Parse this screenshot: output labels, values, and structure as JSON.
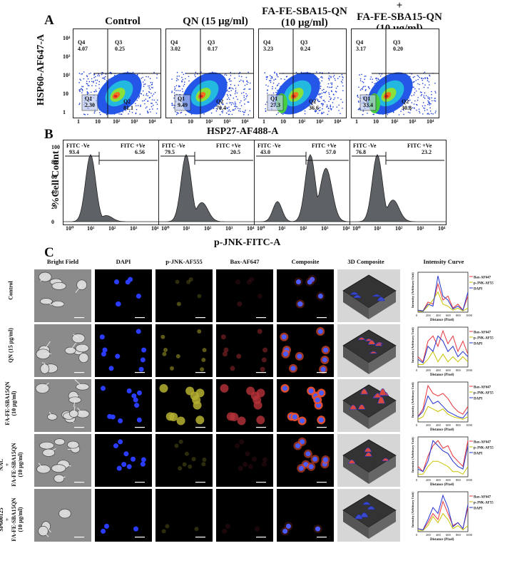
{
  "panelA": {
    "letter": "A",
    "titles": [
      "Control",
      "QN (15 μg/ml)",
      "FA-FE-SBA15-QN\n(10 μg/ml)",
      "+\nFA-FE-SBA15-QN\n(10 μg/ml)"
    ],
    "ylabel": "HSP60-AF647-A",
    "xlabel": "HSP27-AF488-A",
    "ticks": [
      "1",
      "10",
      "10²",
      "10³",
      "10⁴"
    ],
    "plots": [
      {
        "Q1": "2.30",
        "Q2": "81.1",
        "Q3": "0.25",
        "Q4": "4.07"
      },
      {
        "Q1": "9.49",
        "Q2": "70.4",
        "Q3": "0.17",
        "Q4": "3.02"
      },
      {
        "Q1": "27.3",
        "Q2": "36.6",
        "Q3": "0.24",
        "Q4": "3.23"
      },
      {
        "Q1": "33.4",
        "Q2": "30.8",
        "Q3": "0.20",
        "Q4": "3.17"
      }
    ]
  },
  "panelB": {
    "letter": "B",
    "ylabel": "%Cell Count",
    "xlabel": "p-JNK-FITC-A",
    "yticks": [
      "0",
      "20",
      "40",
      "60",
      "80",
      "100"
    ],
    "xticks": [
      "10¹",
      "10⁰",
      "10¹",
      "10²",
      "10³",
      "10⁴"
    ],
    "neg_label": "FITC -Ve",
    "pos_label": "FITC +Ve",
    "plots": [
      {
        "neg": "93.4",
        "pos": "6.56"
      },
      {
        "neg": "79.5",
        "pos": "20.5"
      },
      {
        "neg": "43.0",
        "pos": "57.0"
      },
      {
        "neg": "76.8",
        "pos": "23.2"
      }
    ]
  },
  "panelC": {
    "letter": "C",
    "headers": [
      "Bright Field",
      "DAPI",
      "p-JNK-AF555",
      "Bax-AF647",
      "Composite",
      "3D Composite",
      "Intensity Curve"
    ],
    "rows": [
      {
        "label": "Control"
      },
      {
        "label": "QN (15 μg/ml)"
      },
      {
        "label": "FA-FE-SBA15QN\n(10 μg/ml)"
      },
      {
        "label": "NAC\n+\nFA-FE-SBA15QN\n(10 μg/ml)"
      },
      {
        "label": "SP600125\n+\nFA-FE-SBA15QN\n(10 μg/ml)"
      }
    ],
    "curve": {
      "ylabel": "Intensity (Arbitrary Unit)",
      "xlabel": "Distance (Pixel)",
      "legend": [
        "Bax-AF647",
        "p-JNK-AF555",
        "DAPI"
      ],
      "colors": [
        "#e8343a",
        "#c9c400",
        "#2233cc"
      ],
      "xticks": [
        "0",
        "200",
        "400",
        "600",
        "800",
        "1000"
      ]
    }
  },
  "chart_data": [
    {
      "type": "scatter",
      "title": "",
      "xlabel": "HSP27-AF488-A",
      "ylabel": "HSP60-AF647-A",
      "categories": [
        "Control",
        "QN (15 μg/ml)",
        "FA-FE-SBA15-QN (10 μg/ml)",
        "FA-FE-SBA15-QN (10 μg/ml) combination"
      ],
      "series": [
        {
          "name": "Q1",
          "values": [
            2.3,
            9.49,
            27.3,
            33.4
          ]
        },
        {
          "name": "Q2",
          "values": [
            81.1,
            70.4,
            36.6,
            30.8
          ]
        },
        {
          "name": "Q3",
          "values": [
            0.25,
            0.17,
            0.24,
            0.2
          ]
        },
        {
          "name": "Q4",
          "values": [
            4.07,
            3.02,
            3.23,
            3.17
          ]
        }
      ]
    },
    {
      "type": "area",
      "title": "",
      "xlabel": "p-JNK-FITC-A",
      "ylabel": "%Cell Count",
      "ylim": [
        0,
        100
      ],
      "series": [
        {
          "name": "FITC -Ve",
          "values": [
            93.4,
            79.5,
            43.0,
            76.8
          ]
        },
        {
          "name": "FITC +Ve",
          "values": [
            6.56,
            20.5,
            57.0,
            23.2
          ]
        }
      ]
    },
    {
      "type": "line",
      "title": "",
      "xlabel": "Distance (Pixel)",
      "ylabel": "Intensity (Arbitrary Unit)",
      "x": [
        0,
        100,
        200,
        300,
        400,
        500,
        600,
        700,
        800,
        900,
        1000
      ],
      "groups": [
        {
          "series": [
            {
              "name": "Bax-AF647",
              "values": [
                5,
                3,
                25,
                20,
                70,
                30,
                40,
                10,
                20,
                5,
                40
              ]
            },
            {
              "name": "p-JNK-AF555",
              "values": [
                2,
                2,
                15,
                30,
                50,
                20,
                15,
                5,
                10,
                3,
                10
              ]
            },
            {
              "name": "DAPI",
              "values": [
                5,
                3,
                20,
                15,
                90,
                40,
                30,
                8,
                15,
                5,
                50
              ]
            }
          ]
        },
        {
          "series": [
            {
              "name": "Bax-AF647",
              "values": [
                20,
                10,
                50,
                60,
                40,
                70,
                45,
                60,
                30,
                50,
                25
              ]
            },
            {
              "name": "p-JNK-AF555",
              "values": [
                5,
                5,
                15,
                30,
                10,
                25,
                10,
                20,
                10,
                20,
                10
              ]
            },
            {
              "name": "DAPI",
              "values": [
                15,
                8,
                40,
                30,
                60,
                50,
                30,
                40,
                20,
                30,
                20
              ]
            }
          ]
        },
        {
          "series": [
            {
              "name": "Bax-AF647",
              "values": [
                20,
                50,
                140,
                110,
                100,
                110,
                90,
                60,
                40,
                30,
                60
              ]
            },
            {
              "name": "p-JNK-AF555",
              "values": [
                10,
                20,
                60,
                50,
                40,
                50,
                30,
                20,
                15,
                10,
                20
              ]
            },
            {
              "name": "DAPI",
              "values": [
                20,
                40,
                100,
                70,
                80,
                60,
                40,
                30,
                20,
                15,
                40
              ]
            }
          ]
        },
        {
          "series": [
            {
              "name": "Bax-AF647",
              "values": [
                20,
                10,
                40,
                60,
                70,
                55,
                60,
                40,
                30,
                20,
                70
              ]
            },
            {
              "name": "p-JNK-AF555",
              "values": [
                5,
                5,
                20,
                30,
                30,
                25,
                20,
                10,
                10,
                5,
                20
              ]
            },
            {
              "name": "DAPI",
              "values": [
                15,
                10,
                30,
                70,
                60,
                50,
                45,
                30,
                20,
                15,
                60
              ]
            }
          ]
        },
        {
          "series": [
            {
              "name": "Bax-AF647",
              "values": [
                5,
                3,
                15,
                30,
                20,
                50,
                30,
                10,
                15,
                5,
                40
              ]
            },
            {
              "name": "p-JNK-AF555",
              "values": [
                2,
                2,
                10,
                25,
                15,
                30,
                20,
                5,
                10,
                3,
                10
              ]
            },
            {
              "name": "DAPI",
              "values": [
                5,
                3,
                20,
                40,
                30,
                60,
                40,
                8,
                15,
                5,
                45
              ]
            }
          ]
        }
      ]
    }
  ]
}
